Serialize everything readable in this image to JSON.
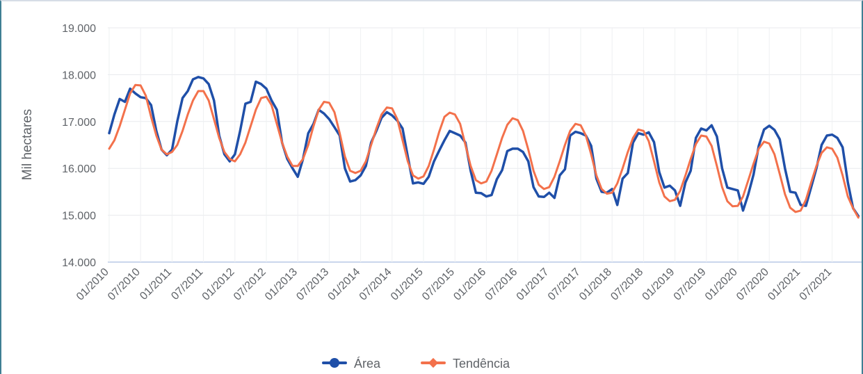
{
  "chart_data": {
    "type": "line",
    "ylabel": "Mil hectares",
    "xlabel": "",
    "ylim": [
      14000,
      19000
    ],
    "y_ticks": [
      "14.000",
      "15.000",
      "16.000",
      "17.000",
      "18.000",
      "19.000"
    ],
    "x_ticks": [
      "01/2010",
      "07/2010",
      "01/2011",
      "07/2011",
      "01/2012",
      "07/2012",
      "01/2013",
      "07/2013",
      "01/2014",
      "07/2014",
      "01/2015",
      "07/2015",
      "01/2016",
      "07/2016",
      "01/2017",
      "07/2017",
      "01/2018",
      "07/2018",
      "01/2019",
      "07/2019",
      "01/2020",
      "07/2020",
      "01/2021",
      "07/2021"
    ],
    "x_start": "01/2010",
    "x_end": "03/2022",
    "grid": true,
    "legend_position": "bottom",
    "series": [
      {
        "name": "Área",
        "color": "#1f4fa8",
        "values": [
          16750,
          17150,
          17480,
          17420,
          17700,
          17600,
          17520,
          17500,
          17350,
          16800,
          16400,
          16280,
          16400,
          17000,
          17500,
          17650,
          17900,
          17950,
          17920,
          17800,
          17450,
          16700,
          16300,
          16150,
          16300,
          16800,
          17380,
          17420,
          17850,
          17800,
          17700,
          17450,
          17250,
          16550,
          16200,
          16000,
          15820,
          16200,
          16750,
          16950,
          17250,
          17170,
          17050,
          16880,
          16700,
          16000,
          15720,
          15750,
          15850,
          16050,
          16550,
          16800,
          17080,
          17200,
          17130,
          17020,
          16850,
          16250,
          15680,
          15700,
          15670,
          15820,
          16150,
          16380,
          16600,
          16800,
          16750,
          16700,
          16550,
          15950,
          15480,
          15470,
          15400,
          15430,
          15770,
          15960,
          16370,
          16420,
          16420,
          16350,
          16150,
          15600,
          15400,
          15390,
          15480,
          15370,
          15850,
          15980,
          16700,
          16780,
          16750,
          16700,
          16480,
          15780,
          15500,
          15480,
          15560,
          15220,
          15780,
          15900,
          16550,
          16750,
          16720,
          16770,
          16560,
          15920,
          15590,
          15630,
          15530,
          15200,
          15700,
          15950,
          16650,
          16850,
          16810,
          16920,
          16680,
          16000,
          15590,
          15560,
          15530,
          15100,
          15450,
          15870,
          16480,
          16830,
          16910,
          16820,
          16620,
          16000,
          15500,
          15480,
          15220,
          15200,
          15600,
          16000,
          16500,
          16700,
          16720,
          16650,
          16450,
          15700,
          15150,
          14980
        ]
      },
      {
        "name": "Tendência",
        "color": "#f3714b",
        "values": [
          16420,
          16600,
          16900,
          17250,
          17600,
          17780,
          17770,
          17550,
          17100,
          16700,
          16400,
          16300,
          16350,
          16500,
          16800,
          17150,
          17450,
          17650,
          17650,
          17450,
          17050,
          16650,
          16350,
          16200,
          16150,
          16300,
          16550,
          16900,
          17250,
          17500,
          17530,
          17350,
          16950,
          16550,
          16250,
          16050,
          16050,
          16200,
          16500,
          16900,
          17250,
          17420,
          17400,
          17200,
          16750,
          16250,
          15950,
          15900,
          15950,
          16150,
          16500,
          16850,
          17150,
          17300,
          17280,
          17050,
          16600,
          16150,
          15850,
          15780,
          15830,
          16050,
          16400,
          16780,
          17100,
          17190,
          17150,
          16950,
          16500,
          16050,
          15750,
          15680,
          15720,
          15950,
          16300,
          16650,
          16930,
          17070,
          17030,
          16800,
          16400,
          15950,
          15650,
          15560,
          15600,
          15820,
          16150,
          16500,
          16800,
          16950,
          16920,
          16700,
          16300,
          15850,
          15560,
          15460,
          15480,
          15680,
          16000,
          16350,
          16650,
          16830,
          16800,
          16580,
          16150,
          15700,
          15400,
          15300,
          15330,
          15520,
          15850,
          16200,
          16520,
          16700,
          16680,
          16480,
          16050,
          15600,
          15300,
          15190,
          15200,
          15400,
          15750,
          16100,
          16420,
          16570,
          16530,
          16300,
          15880,
          15450,
          15160,
          15070,
          15100,
          15330,
          15700,
          16050,
          16330,
          16450,
          16420,
          16230,
          15850,
          15400,
          15150,
          14950
        ]
      }
    ]
  }
}
